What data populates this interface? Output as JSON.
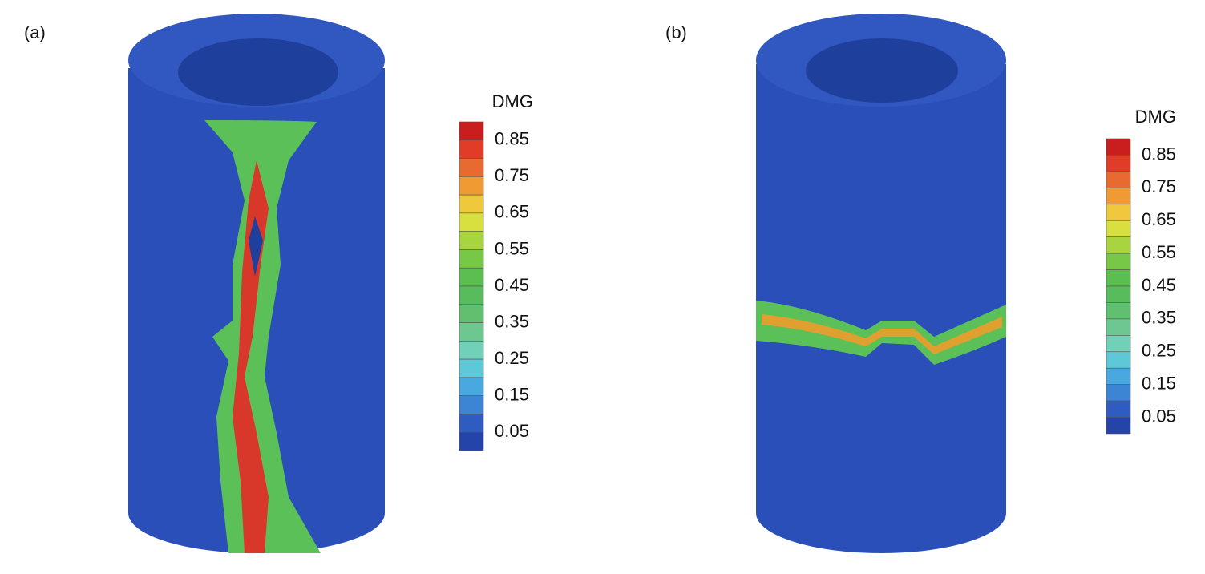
{
  "panels": [
    {
      "label": "(a)",
      "legend": {
        "title": "DMG",
        "ticks": [
          "0.85",
          "0.75",
          "0.65",
          "0.55",
          "0.45",
          "0.35",
          "0.25",
          "0.15",
          "0.05"
        ]
      }
    },
    {
      "label": "(b)",
      "legend": {
        "title": "DMG",
        "ticks": [
          "0.85",
          "0.75",
          "0.65",
          "0.55",
          "0.45",
          "0.35",
          "0.25",
          "0.15",
          "0.05"
        ]
      }
    }
  ],
  "legend_colors": [
    "#c81e1e",
    "#e03c28",
    "#e86a30",
    "#f09a34",
    "#f0c83c",
    "#d8e040",
    "#a8d440",
    "#78c848",
    "#5cbe50",
    "#58bc5c",
    "#60c070",
    "#6cc890",
    "#70d0b8",
    "#5cc8d8",
    "#4aa8e0",
    "#3c84d4",
    "#2e5cc0",
    "#2444aa"
  ]
}
